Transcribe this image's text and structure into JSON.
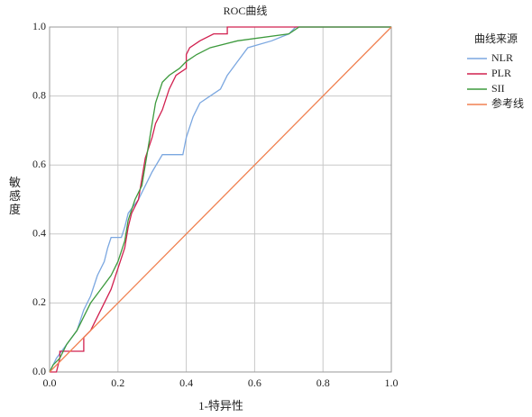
{
  "chart_data": {
    "type": "line",
    "title": "ROC曲线",
    "x_label": "1-特异性",
    "y_label": "敏感度",
    "legend_title": "曲线来源",
    "legend": "right",
    "grid": true,
    "xlim": [
      0,
      1
    ],
    "ylim": [
      0,
      1
    ],
    "xticks": [
      {
        "value": 0,
        "label": "0.0"
      },
      0.2,
      0.4,
      0.6,
      0.8,
      {
        "value": 1,
        "label": "1.0"
      }
    ],
    "yticks": [
      {
        "value": 0,
        "label": "0.0"
      },
      0.2,
      0.4,
      0.6,
      0.8,
      {
        "value": 1,
        "label": "1.0"
      }
    ],
    "series": [
      {
        "name": "NLR",
        "color": "#7ba7e0",
        "x": [
          0,
          0.02,
          0.05,
          0.08,
          0.1,
          0.12,
          0.14,
          0.16,
          0.17,
          0.18,
          0.21,
          0.22,
          0.23,
          0.26,
          0.28,
          0.3,
          0.33,
          0.39,
          0.4,
          0.42,
          0.44,
          0.47,
          0.5,
          0.52,
          0.55,
          0.58,
          0.65,
          0.7,
          0.72,
          1
        ],
        "values": [
          0,
          0.04,
          0.08,
          0.12,
          0.18,
          0.22,
          0.28,
          0.32,
          0.36,
          0.39,
          0.39,
          0.42,
          0.46,
          0.5,
          0.54,
          0.58,
          0.63,
          0.63,
          0.68,
          0.74,
          0.78,
          0.8,
          0.82,
          0.86,
          0.9,
          0.94,
          0.96,
          0.98,
          1,
          1
        ]
      },
      {
        "name": "PLR",
        "color": "#d1204f",
        "x": [
          0,
          0.02,
          0.03,
          0.03,
          0.1,
          0.1,
          0.12,
          0.14,
          0.16,
          0.18,
          0.2,
          0.22,
          0.23,
          0.24,
          0.26,
          0.27,
          0.28,
          0.3,
          0.31,
          0.33,
          0.35,
          0.37,
          0.4,
          0.4,
          0.41,
          0.44,
          0.48,
          0.52,
          0.52,
          1
        ],
        "values": [
          0,
          0,
          0.04,
          0.06,
          0.06,
          0.1,
          0.12,
          0.16,
          0.2,
          0.24,
          0.3,
          0.36,
          0.42,
          0.46,
          0.5,
          0.56,
          0.62,
          0.68,
          0.72,
          0.76,
          0.82,
          0.86,
          0.88,
          0.92,
          0.94,
          0.96,
          0.98,
          0.98,
          1,
          1
        ]
      },
      {
        "name": "SII",
        "color": "#3d9a3d",
        "x": [
          0,
          0.01,
          0.03,
          0.05,
          0.08,
          0.1,
          0.12,
          0.15,
          0.18,
          0.2,
          0.22,
          0.23,
          0.25,
          0.27,
          0.28,
          0.29,
          0.3,
          0.31,
          0.33,
          0.35,
          0.38,
          0.4,
          0.43,
          0.47,
          0.55,
          0.7,
          0.73,
          1
        ],
        "values": [
          0,
          0.02,
          0.04,
          0.08,
          0.12,
          0.16,
          0.2,
          0.24,
          0.28,
          0.32,
          0.38,
          0.44,
          0.5,
          0.54,
          0.6,
          0.66,
          0.72,
          0.78,
          0.84,
          0.86,
          0.88,
          0.9,
          0.92,
          0.94,
          0.96,
          0.98,
          1,
          1
        ]
      },
      {
        "name": "参考线",
        "color": "#f08050",
        "x": [
          0,
          1
        ],
        "values": [
          0,
          1
        ]
      }
    ]
  }
}
